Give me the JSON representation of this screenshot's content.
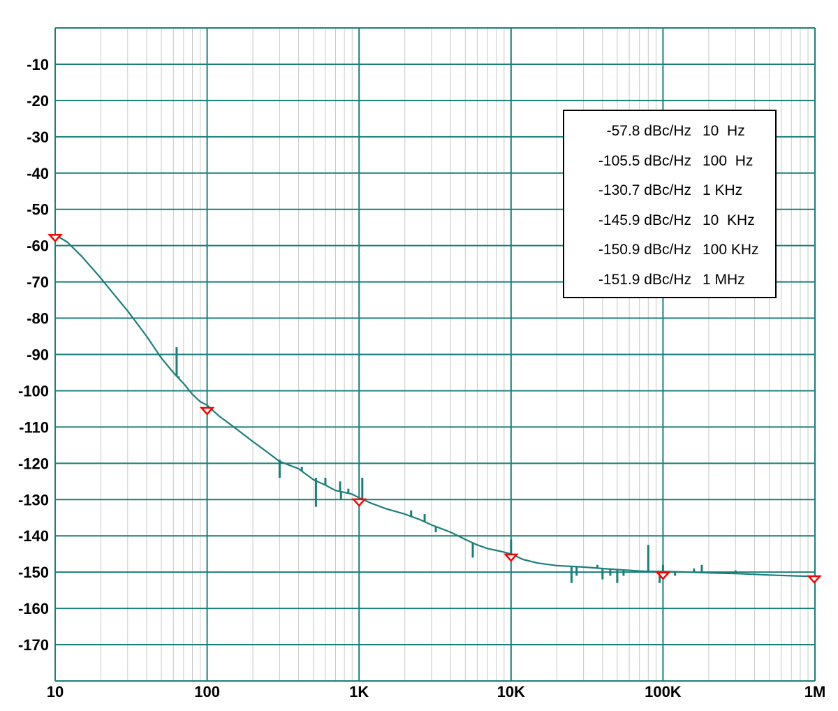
{
  "chart_data": {
    "type": "line",
    "title": "",
    "xlabel": "",
    "ylabel": "",
    "x_scale": "log",
    "xlim": [
      10,
      1000000
    ],
    "ylim": [
      -180,
      0
    ],
    "grid": true,
    "x_ticks": [
      {
        "value": 10,
        "label": "10"
      },
      {
        "value": 100,
        "label": "100"
      },
      {
        "value": 1000,
        "label": "1K"
      },
      {
        "value": 10000,
        "label": "10K"
      },
      {
        "value": 100000,
        "label": "100K"
      },
      {
        "value": 1000000,
        "label": "1M"
      }
    ],
    "y_ticks": [
      {
        "value": -10,
        "label": "-10"
      },
      {
        "value": -20,
        "label": "-20"
      },
      {
        "value": -30,
        "label": "-30"
      },
      {
        "value": -40,
        "label": "-40"
      },
      {
        "value": -50,
        "label": "-50"
      },
      {
        "value": -60,
        "label": "-60"
      },
      {
        "value": -70,
        "label": "-70"
      },
      {
        "value": -80,
        "label": "-80"
      },
      {
        "value": -90,
        "label": "-90"
      },
      {
        "value": -100,
        "label": "-100"
      },
      {
        "value": -110,
        "label": "-110"
      },
      {
        "value": -120,
        "label": "-120"
      },
      {
        "value": -130,
        "label": "-130"
      },
      {
        "value": -140,
        "label": "-140"
      },
      {
        "value": -150,
        "label": "-150"
      },
      {
        "value": -160,
        "label": "-160"
      },
      {
        "value": -170,
        "label": "-170"
      }
    ],
    "series": [
      {
        "color": "#1a7f7a",
        "points": [
          [
            10,
            -57
          ],
          [
            12,
            -59
          ],
          [
            15,
            -63
          ],
          [
            20,
            -69
          ],
          [
            25,
            -74
          ],
          [
            30,
            -78
          ],
          [
            40,
            -85
          ],
          [
            50,
            -91
          ],
          [
            60,
            -95
          ],
          [
            63,
            -96
          ],
          [
            70,
            -98
          ],
          [
            80,
            -101
          ],
          [
            90,
            -103
          ],
          [
            100,
            -104
          ],
          [
            120,
            -107
          ],
          [
            150,
            -110
          ],
          [
            200,
            -114
          ],
          [
            250,
            -117
          ],
          [
            300,
            -119.5
          ],
          [
            400,
            -121.5
          ],
          [
            500,
            -124.5
          ],
          [
            600,
            -126
          ],
          [
            700,
            -127.5
          ],
          [
            800,
            -128
          ],
          [
            900,
            -128.5
          ],
          [
            1000,
            -129.5
          ],
          [
            1200,
            -131
          ],
          [
            1500,
            -132.5
          ],
          [
            2000,
            -134
          ],
          [
            2500,
            -135.5
          ],
          [
            3000,
            -137
          ],
          [
            4000,
            -139
          ],
          [
            5000,
            -141
          ],
          [
            6000,
            -142.5
          ],
          [
            7000,
            -143.5
          ],
          [
            8000,
            -144
          ],
          [
            9000,
            -144.5
          ],
          [
            10000,
            -145
          ],
          [
            12000,
            -146.5
          ],
          [
            15000,
            -147.5
          ],
          [
            20000,
            -148.2
          ],
          [
            30000,
            -148.6
          ],
          [
            40000,
            -149
          ],
          [
            50000,
            -149.3
          ],
          [
            60000,
            -149.5
          ],
          [
            70000,
            -149.7
          ],
          [
            80000,
            -149.8
          ],
          [
            90000,
            -149.8
          ],
          [
            100000,
            -149.8
          ],
          [
            150000,
            -150
          ],
          [
            200000,
            -150.2
          ],
          [
            300000,
            -150.4
          ],
          [
            400000,
            -150.6
          ],
          [
            500000,
            -150.8
          ],
          [
            700000,
            -151
          ],
          [
            1000000,
            -151.2
          ]
        ],
        "spikes": [
          [
            63,
            -88
          ],
          [
            65,
            -96
          ],
          [
            300,
            -119
          ],
          [
            300,
            -124
          ],
          [
            420,
            -121
          ],
          [
            520,
            -124
          ],
          [
            520,
            -132
          ],
          [
            600,
            -124
          ],
          [
            750,
            -125
          ],
          [
            760,
            -130
          ],
          [
            850,
            -127
          ],
          [
            1050,
            -124
          ],
          [
            2200,
            -133
          ],
          [
            2700,
            -134
          ],
          [
            3200,
            -139
          ],
          [
            5600,
            -144
          ],
          [
            5600,
            -146
          ],
          [
            10000,
            -141
          ],
          [
            25000,
            -153
          ],
          [
            27000,
            -151
          ],
          [
            37000,
            -148
          ],
          [
            40000,
            -152
          ],
          [
            45000,
            -151
          ],
          [
            50000,
            -153
          ],
          [
            55000,
            -151
          ],
          [
            80000,
            -142.5
          ],
          [
            95000,
            -153
          ],
          [
            100000,
            -148
          ],
          [
            120000,
            -151
          ],
          [
            160000,
            -149
          ],
          [
            180000,
            -148
          ],
          [
            300000,
            -149.5
          ]
        ]
      }
    ],
    "markers": [
      {
        "x": 10,
        "y": -57.8,
        "color": "#ff0000"
      },
      {
        "x": 100,
        "y": -105.5,
        "color": "#ff0000"
      },
      {
        "x": 1000,
        "y": -130.7,
        "color": "#ff0000"
      },
      {
        "x": 10000,
        "y": -145.9,
        "color": "#ff0000"
      },
      {
        "x": 100000,
        "y": -150.9,
        "color": "#ff0000"
      },
      {
        "x": 1000000,
        "y": -151.9,
        "color": "#ff0000"
      }
    ],
    "annotations": [
      {
        "value": "-57.8 dBc/Hz",
        "freq": "10  Hz"
      },
      {
        "value": "-105.5 dBc/Hz",
        "freq": "100  Hz"
      },
      {
        "value": "-130.7 dBc/Hz",
        "freq": "1 KHz"
      },
      {
        "value": "-145.9 dBc/Hz",
        "freq": "10  KHz"
      },
      {
        "value": "-150.9 dBc/Hz",
        "freq": "100 KHz"
      },
      {
        "value": "-151.9 dBc/Hz",
        "freq": "1 MHz"
      }
    ]
  },
  "colors": {
    "major_grid": "#1a7f7a",
    "minor_grid": "#c8c8c8",
    "trace": "#1a7f7a",
    "marker": "#ff0000",
    "text": "#000000"
  }
}
